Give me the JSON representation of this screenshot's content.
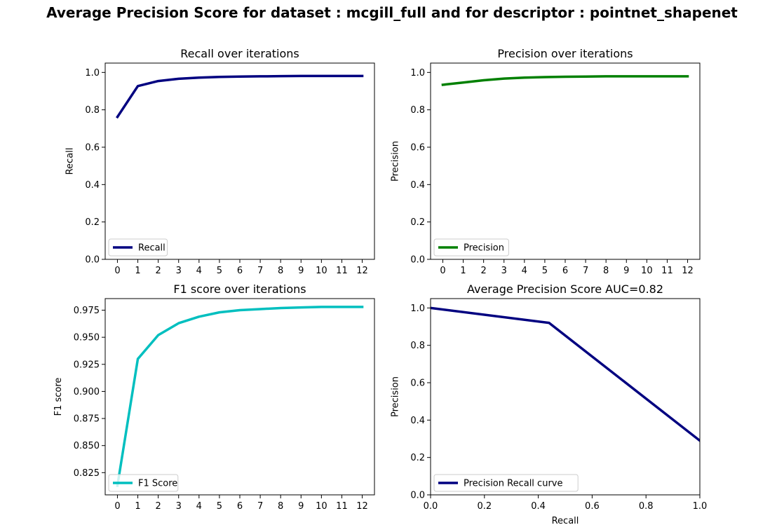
{
  "figure_title": "Average Precision Score for dataset : mcgill_full and for descriptor : pointnet_shapenet",
  "chart_data": [
    {
      "type": "line",
      "title": "Recall over iterations",
      "xlabel": "",
      "ylabel": "Recall",
      "xlim": [
        -0.6,
        12.6
      ],
      "ylim": [
        0,
        1.05
      ],
      "xticks": [
        0,
        1,
        2,
        3,
        4,
        5,
        6,
        7,
        8,
        9,
        10,
        11,
        12
      ],
      "xticklabels": [
        "0",
        "1",
        "2",
        "3",
        "4",
        "5",
        "6",
        "7",
        "8",
        "9",
        "10",
        "11",
        "12"
      ],
      "yticks": [
        0,
        0.2,
        0.4,
        0.6,
        0.8,
        1.0
      ],
      "yticklabels": [
        "0.0",
        "0.2",
        "0.4",
        "0.6",
        "0.8",
        "1.0"
      ],
      "legend_position": "lower-left",
      "series": [
        {
          "name": "Recall",
          "color": "#000080",
          "x": [
            0,
            1,
            2,
            3,
            4,
            5,
            6,
            7,
            8,
            9,
            10,
            11,
            12
          ],
          "y": [
            0.762,
            0.927,
            0.954,
            0.966,
            0.972,
            0.976,
            0.978,
            0.979,
            0.98,
            0.981,
            0.981,
            0.981,
            0.981
          ]
        }
      ]
    },
    {
      "type": "line",
      "title": "Precision over iterations",
      "xlabel": "",
      "ylabel": "Precision",
      "xlim": [
        -0.6,
        12.6
      ],
      "ylim": [
        0,
        1.05
      ],
      "xticks": [
        0,
        1,
        2,
        3,
        4,
        5,
        6,
        7,
        8,
        9,
        10,
        11,
        12
      ],
      "xticklabels": [
        "0",
        "1",
        "2",
        "3",
        "4",
        "5",
        "6",
        "7",
        "8",
        "9",
        "10",
        "11",
        "12"
      ],
      "yticks": [
        0,
        0.2,
        0.4,
        0.6,
        0.8,
        1.0
      ],
      "yticklabels": [
        "0.0",
        "0.2",
        "0.4",
        "0.6",
        "0.8",
        "1.0"
      ],
      "legend_position": "lower-left",
      "series": [
        {
          "name": "Precision",
          "color": "#008000",
          "x": [
            0,
            1,
            2,
            3,
            4,
            5,
            6,
            7,
            8,
            9,
            10,
            11,
            12
          ],
          "y": [
            0.934,
            0.946,
            0.958,
            0.967,
            0.972,
            0.975,
            0.977,
            0.978,
            0.979,
            0.979,
            0.979,
            0.979,
            0.979
          ]
        }
      ]
    },
    {
      "type": "line",
      "title": "F1 score over iterations",
      "xlabel": "",
      "ylabel": "F1 score",
      "xlim": [
        -0.6,
        12.6
      ],
      "ylim": [
        0.8045,
        0.9857
      ],
      "xticks": [
        0,
        1,
        2,
        3,
        4,
        5,
        6,
        7,
        8,
        9,
        10,
        11,
        12
      ],
      "xticklabels": [
        "0",
        "1",
        "2",
        "3",
        "4",
        "5",
        "6",
        "7",
        "8",
        "9",
        "10",
        "11",
        "12"
      ],
      "yticks": [
        0.825,
        0.85,
        0.875,
        0.9,
        0.925,
        0.95,
        0.975
      ],
      "yticklabels": [
        "0.825",
        "0.850",
        "0.875",
        "0.900",
        "0.925",
        "0.950",
        "0.975"
      ],
      "legend_position": "lower-left",
      "series": [
        {
          "name": "F1 Score",
          "color": "#00bfbf",
          "x": [
            0,
            1,
            2,
            3,
            4,
            5,
            6,
            7,
            8,
            9,
            10,
            11,
            12
          ],
          "y": [
            0.813,
            0.93,
            0.952,
            0.963,
            0.969,
            0.973,
            0.975,
            0.976,
            0.977,
            0.9775,
            0.978,
            0.978,
            0.978
          ]
        }
      ]
    },
    {
      "type": "line",
      "title": "Average Precision Score AUC=0.82",
      "xlabel": "Recall",
      "ylabel": "Precision",
      "xlim": [
        0,
        1
      ],
      "ylim": [
        0,
        1.05
      ],
      "xticks": [
        0,
        0.2,
        0.4,
        0.6,
        0.8,
        1.0
      ],
      "xticklabels": [
        "0.0",
        "0.2",
        "0.4",
        "0.6",
        "0.8",
        "1.0"
      ],
      "yticks": [
        0,
        0.2,
        0.4,
        0.6,
        0.8,
        1.0
      ],
      "yticklabels": [
        "0.0",
        "0.2",
        "0.4",
        "0.6",
        "0.8",
        "1.0"
      ],
      "legend_position": "lower-left",
      "series": [
        {
          "name": "Precision Recall curve",
          "color": "#000080",
          "x": [
            0,
            0.44,
            1.0
          ],
          "y": [
            1.0,
            0.92,
            0.29
          ]
        }
      ]
    }
  ]
}
